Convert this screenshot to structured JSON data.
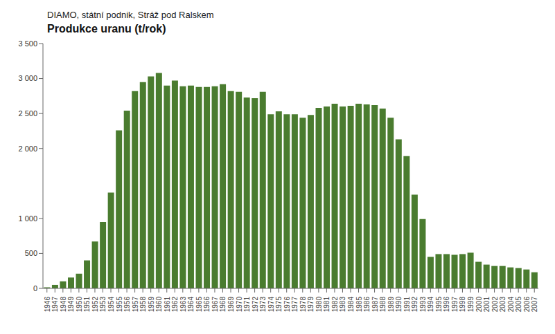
{
  "chart_data": {
    "type": "bar",
    "subtitle": "DIAMO, státní podnik, Stráž pod Ralskem",
    "title": "Produkce uranu (t/rok)",
    "categories": [
      "1946",
      "1947",
      "1948",
      "1949",
      "1950",
      "1951",
      "1952",
      "1953",
      "1954",
      "1955",
      "1956",
      "1957",
      "1958",
      "1959",
      "1960",
      "1961",
      "1962",
      "1963",
      "1964",
      "1965",
      "1966",
      "1967",
      "1968",
      "1969",
      "1970",
      "1971",
      "1972",
      "1973",
      "1974",
      "1975",
      "1976",
      "1977",
      "1978",
      "1979",
      "1980",
      "1981",
      "1982",
      "1983",
      "1984",
      "1985",
      "1986",
      "1987",
      "1988",
      "1989",
      "1990",
      "1991",
      "1992",
      "1993",
      "1994",
      "1995",
      "1996",
      "1997",
      "1998",
      "1999",
      "2000",
      "2001",
      "2002",
      "2003",
      "2004",
      "2005",
      "2006",
      "2007"
    ],
    "values": [
      15,
      50,
      100,
      155,
      210,
      400,
      670,
      950,
      1370,
      2260,
      2540,
      2820,
      2950,
      3030,
      3080,
      2900,
      2970,
      2890,
      2900,
      2880,
      2880,
      2890,
      2920,
      2820,
      2810,
      2730,
      2720,
      2810,
      2490,
      2530,
      2490,
      2490,
      2440,
      2480,
      2580,
      2600,
      2640,
      2600,
      2610,
      2640,
      2630,
      2620,
      2570,
      2440,
      2130,
      1890,
      1340,
      990,
      450,
      490,
      490,
      480,
      490,
      510,
      380,
      340,
      320,
      320,
      300,
      290,
      270,
      230
    ],
    "color": "#4a7c2f",
    "ylim": [
      0,
      3500
    ],
    "yticks": [
      0,
      500,
      {
        "value": 1000,
        "label": "1 000"
      },
      {
        "value": 2000,
        "label": "2 000"
      },
      {
        "value": 2500,
        "label": "2 500"
      },
      {
        "value": 3000,
        "label": "3 000"
      },
      {
        "value": 3500,
        "label": "3 500"
      }
    ],
    "grid": false
  }
}
